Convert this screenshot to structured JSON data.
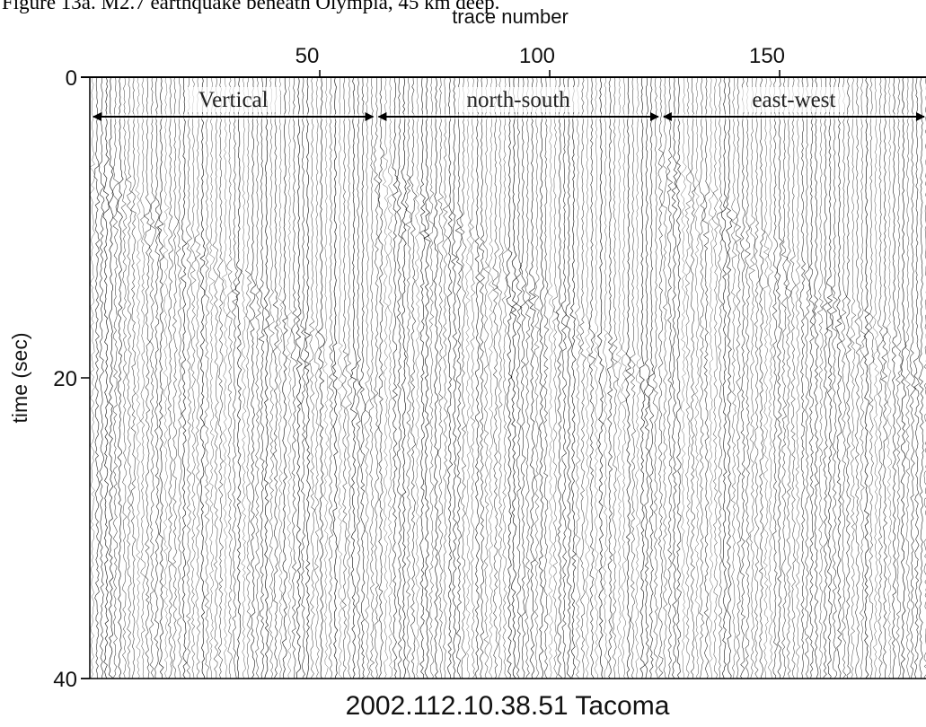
{
  "figure_caption": "Figure 13a. M2.7 earthquake beneath Olympia, 45 km deep.",
  "chart_data": {
    "type": "heatmap",
    "title": "",
    "subtitle": "2002.112.10.38.51 Tacoma",
    "xlabel": "trace number",
    "ylabel": "time (sec)",
    "xlim": [
      0,
      180
    ],
    "ylim": [
      0,
      40
    ],
    "y_inverted": true,
    "x_ticks": [
      50,
      100,
      150
    ],
    "y_ticks": [
      0,
      20,
      40
    ],
    "grid": false,
    "components": [
      {
        "name": "Vertical",
        "trace_start": 1,
        "trace_end": 62
      },
      {
        "name": "north-south",
        "trace_start": 63,
        "trace_end": 124
      },
      {
        "name": "east-west",
        "trace_start": 125,
        "trace_end": 186
      }
    ],
    "arrivals": [
      {
        "component": "Vertical",
        "time_start": 5,
        "time_end": 20
      },
      {
        "component": "north-south",
        "time_start": 5,
        "time_end": 20
      },
      {
        "component": "east-west",
        "time_start": 5,
        "time_end": 20
      }
    ]
  }
}
